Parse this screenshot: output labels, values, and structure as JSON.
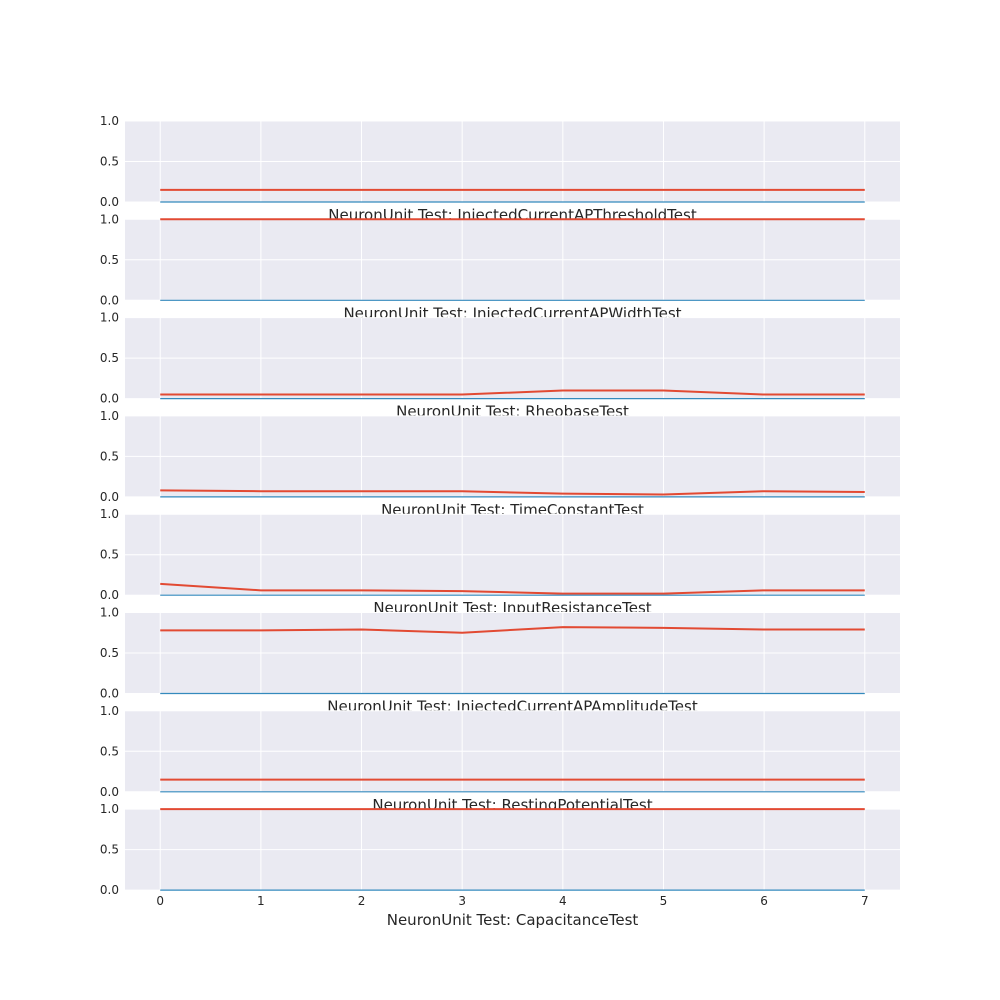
{
  "chart_data": [
    {
      "type": "line",
      "xlabel": "NeuronUnit Test: InjectedCurrentAPThresholdTest",
      "x": [
        0,
        1,
        2,
        3,
        4,
        5,
        6,
        7
      ],
      "ylim": [
        0,
        1
      ],
      "yticks": [
        "0.0",
        "0.5",
        "1.0"
      ],
      "xticks": [
        "0",
        "1",
        "2",
        "3",
        "4",
        "5",
        "6",
        "7"
      ],
      "show_xticks": false,
      "grid": true,
      "series": [
        {
          "color": "#e24a33",
          "values": [
            0.15,
            0.15,
            0.15,
            0.15,
            0.15,
            0.15,
            0.15,
            0.15
          ]
        },
        {
          "color": "#348abd",
          "values": [
            0,
            0,
            0,
            0,
            0,
            0,
            0,
            0
          ]
        }
      ]
    },
    {
      "type": "line",
      "xlabel": "NeuronUnit Test: InjectedCurrentAPWidthTest",
      "x": [
        0,
        1,
        2,
        3,
        4,
        5,
        6,
        7
      ],
      "ylim": [
        0,
        1
      ],
      "yticks": [
        "0.0",
        "0.5",
        "1.0"
      ],
      "xticks": [
        "0",
        "1",
        "2",
        "3",
        "4",
        "5",
        "6",
        "7"
      ],
      "show_xticks": false,
      "grid": true,
      "series": [
        {
          "color": "#e24a33",
          "values": [
            1,
            1,
            1,
            1,
            1,
            1,
            1,
            1
          ]
        },
        {
          "color": "#348abd",
          "values": [
            0,
            0,
            0,
            0,
            0,
            0,
            0,
            0
          ]
        }
      ]
    },
    {
      "type": "line",
      "xlabel": "NeuronUnit Test: RheobaseTest",
      "x": [
        0,
        1,
        2,
        3,
        4,
        5,
        6,
        7
      ],
      "ylim": [
        0,
        1
      ],
      "yticks": [
        "0.0",
        "0.5",
        "1.0"
      ],
      "xticks": [
        "0",
        "1",
        "2",
        "3",
        "4",
        "5",
        "6",
        "7"
      ],
      "show_xticks": false,
      "grid": true,
      "series": [
        {
          "color": "#e24a33",
          "values": [
            0.05,
            0.05,
            0.05,
            0.05,
            0.1,
            0.1,
            0.05,
            0.05
          ]
        },
        {
          "color": "#348abd",
          "values": [
            0,
            0,
            0,
            0,
            0,
            0,
            0,
            0
          ]
        }
      ]
    },
    {
      "type": "line",
      "xlabel": "NeuronUnit Test: TimeConstantTest",
      "x": [
        0,
        1,
        2,
        3,
        4,
        5,
        6,
        7
      ],
      "ylim": [
        0,
        1
      ],
      "yticks": [
        "0.0",
        "0.5",
        "1.0"
      ],
      "xticks": [
        "0",
        "1",
        "2",
        "3",
        "4",
        "5",
        "6",
        "7"
      ],
      "show_xticks": false,
      "grid": true,
      "series": [
        {
          "color": "#e24a33",
          "values": [
            0.08,
            0.07,
            0.07,
            0.07,
            0.04,
            0.03,
            0.07,
            0.06
          ]
        },
        {
          "color": "#348abd",
          "values": [
            0,
            0,
            0,
            0,
            0,
            0,
            0,
            0
          ]
        }
      ]
    },
    {
      "type": "line",
      "xlabel": "NeuronUnit Test: InputResistanceTest",
      "x": [
        0,
        1,
        2,
        3,
        4,
        5,
        6,
        7
      ],
      "ylim": [
        0,
        1
      ],
      "yticks": [
        "0.0",
        "0.5",
        "1.0"
      ],
      "xticks": [
        "0",
        "1",
        "2",
        "3",
        "4",
        "5",
        "6",
        "7"
      ],
      "show_xticks": false,
      "grid": true,
      "series": [
        {
          "color": "#e24a33",
          "values": [
            0.14,
            0.06,
            0.06,
            0.05,
            0.02,
            0.02,
            0.06,
            0.06
          ]
        },
        {
          "color": "#348abd",
          "values": [
            0,
            0,
            0,
            0,
            0,
            0,
            0,
            0
          ]
        }
      ]
    },
    {
      "type": "line",
      "xlabel": "NeuronUnit Test: InjectedCurrentAPAmplitudeTest",
      "x": [
        0,
        1,
        2,
        3,
        4,
        5,
        6,
        7
      ],
      "ylim": [
        0,
        1
      ],
      "yticks": [
        "0.0",
        "0.5",
        "1.0"
      ],
      "xticks": [
        "0",
        "1",
        "2",
        "3",
        "4",
        "5",
        "6",
        "7"
      ],
      "show_xticks": false,
      "grid": true,
      "series": [
        {
          "color": "#e24a33",
          "values": [
            0.78,
            0.78,
            0.79,
            0.75,
            0.82,
            0.81,
            0.79,
            0.79
          ]
        },
        {
          "color": "#348abd",
          "values": [
            0,
            0,
            0,
            0,
            0,
            0,
            0,
            0
          ]
        }
      ]
    },
    {
      "type": "line",
      "xlabel": "NeuronUnit Test: RestingPotentialTest",
      "x": [
        0,
        1,
        2,
        3,
        4,
        5,
        6,
        7
      ],
      "ylim": [
        0,
        1
      ],
      "yticks": [
        "0.0",
        "0.5",
        "1.0"
      ],
      "xticks": [
        "0",
        "1",
        "2",
        "3",
        "4",
        "5",
        "6",
        "7"
      ],
      "show_xticks": false,
      "grid": true,
      "series": [
        {
          "color": "#e24a33",
          "values": [
            0.15,
            0.15,
            0.15,
            0.15,
            0.15,
            0.15,
            0.15,
            0.15
          ]
        },
        {
          "color": "#348abd",
          "values": [
            0,
            0,
            0,
            0,
            0,
            0,
            0,
            0
          ]
        }
      ]
    },
    {
      "type": "line",
      "xlabel": "NeuronUnit Test: CapacitanceTest",
      "x": [
        0,
        1,
        2,
        3,
        4,
        5,
        6,
        7
      ],
      "ylim": [
        0,
        1
      ],
      "yticks": [
        "0.0",
        "0.5",
        "1.0"
      ],
      "xticks": [
        "0",
        "1",
        "2",
        "3",
        "4",
        "5",
        "6",
        "7"
      ],
      "show_xticks": true,
      "grid": true,
      "series": [
        {
          "color": "#e24a33",
          "values": [
            1,
            1,
            1,
            1,
            1,
            1,
            1,
            1
          ]
        },
        {
          "color": "#348abd",
          "values": [
            0,
            0,
            0,
            0,
            0,
            0,
            0,
            0
          ]
        }
      ]
    }
  ]
}
